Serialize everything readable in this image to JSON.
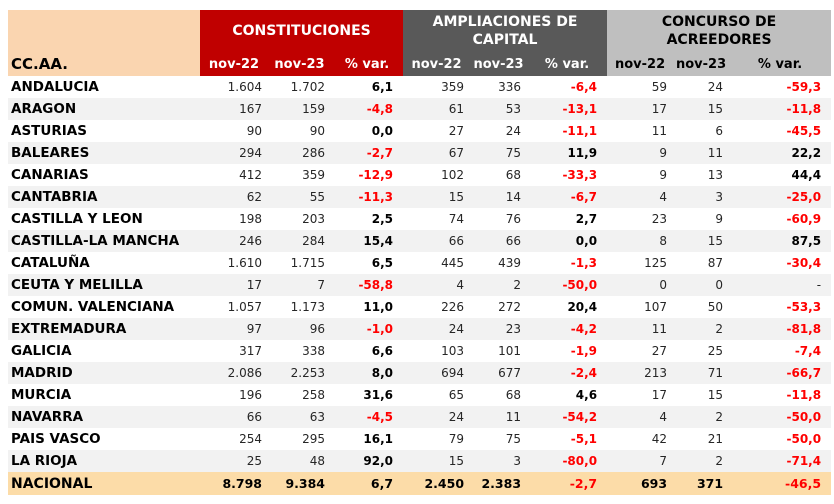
{
  "chart_data": {
    "type": "table",
    "corner_label": "CC.AA.",
    "groups": [
      {
        "title_line1": "CONSTITUCIONES",
        "title_line2": "",
        "columns": [
          "nov-22",
          "nov-23",
          "% var."
        ]
      },
      {
        "title_line1": "AMPLIACIONES DE",
        "title_line2": "CAPITAL",
        "columns": [
          "nov-22",
          "nov-23",
          "% var."
        ]
      },
      {
        "title_line1": "CONCURSO DE",
        "title_line2": "ACREEDORES",
        "columns": [
          "nov-22",
          "nov-23",
          "% var."
        ]
      }
    ],
    "rows": [
      {
        "name": "ANDALUCIA",
        "values": [
          "1.604",
          "1.702",
          "6,1",
          "359",
          "336",
          "-6,4",
          "59",
          "24",
          "-59,3"
        ]
      },
      {
        "name": "ARAGON",
        "values": [
          "167",
          "159",
          "-4,8",
          "61",
          "53",
          "-13,1",
          "17",
          "15",
          "-11,8"
        ]
      },
      {
        "name": "ASTURIAS",
        "values": [
          "90",
          "90",
          "0,0",
          "27",
          "24",
          "-11,1",
          "11",
          "6",
          "-45,5"
        ]
      },
      {
        "name": "BALEARES",
        "values": [
          "294",
          "286",
          "-2,7",
          "67",
          "75",
          "11,9",
          "9",
          "11",
          "22,2"
        ]
      },
      {
        "name": "CANARIAS",
        "values": [
          "412",
          "359",
          "-12,9",
          "102",
          "68",
          "-33,3",
          "9",
          "13",
          "44,4"
        ]
      },
      {
        "name": "CANTABRIA",
        "values": [
          "62",
          "55",
          "-11,3",
          "15",
          "14",
          "-6,7",
          "4",
          "3",
          "-25,0"
        ]
      },
      {
        "name": "CASTILLA Y LEON",
        "values": [
          "198",
          "203",
          "2,5",
          "74",
          "76",
          "2,7",
          "23",
          "9",
          "-60,9"
        ]
      },
      {
        "name": "CASTILLA-LA MANCHA",
        "values": [
          "246",
          "284",
          "15,4",
          "66",
          "66",
          "0,0",
          "8",
          "15",
          "87,5"
        ]
      },
      {
        "name": "CATALUÑA",
        "values": [
          "1.610",
          "1.715",
          "6,5",
          "445",
          "439",
          "-1,3",
          "125",
          "87",
          "-30,4"
        ]
      },
      {
        "name": "CEUTA Y MELILLA",
        "values": [
          "17",
          "7",
          "-58,8",
          "4",
          "2",
          "-50,0",
          "0",
          "0",
          "-"
        ]
      },
      {
        "name": "COMUN. VALENCIANA",
        "values": [
          "1.057",
          "1.173",
          "11,0",
          "226",
          "272",
          "20,4",
          "107",
          "50",
          "-53,3"
        ]
      },
      {
        "name": "EXTREMADURA",
        "values": [
          "97",
          "96",
          "-1,0",
          "24",
          "23",
          "-4,2",
          "11",
          "2",
          "-81,8"
        ]
      },
      {
        "name": "GALICIA",
        "values": [
          "317",
          "338",
          "6,6",
          "103",
          "101",
          "-1,9",
          "27",
          "25",
          "-7,4"
        ]
      },
      {
        "name": "MADRID",
        "values": [
          "2.086",
          "2.253",
          "8,0",
          "694",
          "677",
          "-2,4",
          "213",
          "71",
          "-66,7"
        ]
      },
      {
        "name": "MURCIA",
        "values": [
          "196",
          "258",
          "31,6",
          "65",
          "68",
          "4,6",
          "17",
          "15",
          "-11,8"
        ]
      },
      {
        "name": "NAVARRA",
        "values": [
          "66",
          "63",
          "-4,5",
          "24",
          "11",
          "-54,2",
          "4",
          "2",
          "-50,0"
        ]
      },
      {
        "name": "PAIS VASCO",
        "values": [
          "254",
          "295",
          "16,1",
          "79",
          "75",
          "-5,1",
          "42",
          "21",
          "-50,0"
        ]
      },
      {
        "name": "LA RIOJA",
        "values": [
          "25",
          "48",
          "92,0",
          "15",
          "3",
          "-80,0",
          "7",
          "2",
          "-71,4"
        ]
      }
    ],
    "total_row": {
      "name": "NACIONAL",
      "values": [
        "8.798",
        "9.384",
        "6,7",
        "2.450",
        "2.383",
        "-2,7",
        "693",
        "371",
        "-46,5"
      ]
    },
    "colors": {
      "constituciones_header": "#C00000",
      "ampliaciones_header": "#595959",
      "concurso_header": "#BFBFBF",
      "corner_and_total_bg": "#FAD5B0",
      "total_row_bg": "#FCDCA8",
      "alt_row_bg": "#F2F2F2",
      "negative_value_text": "#FF0000"
    }
  }
}
